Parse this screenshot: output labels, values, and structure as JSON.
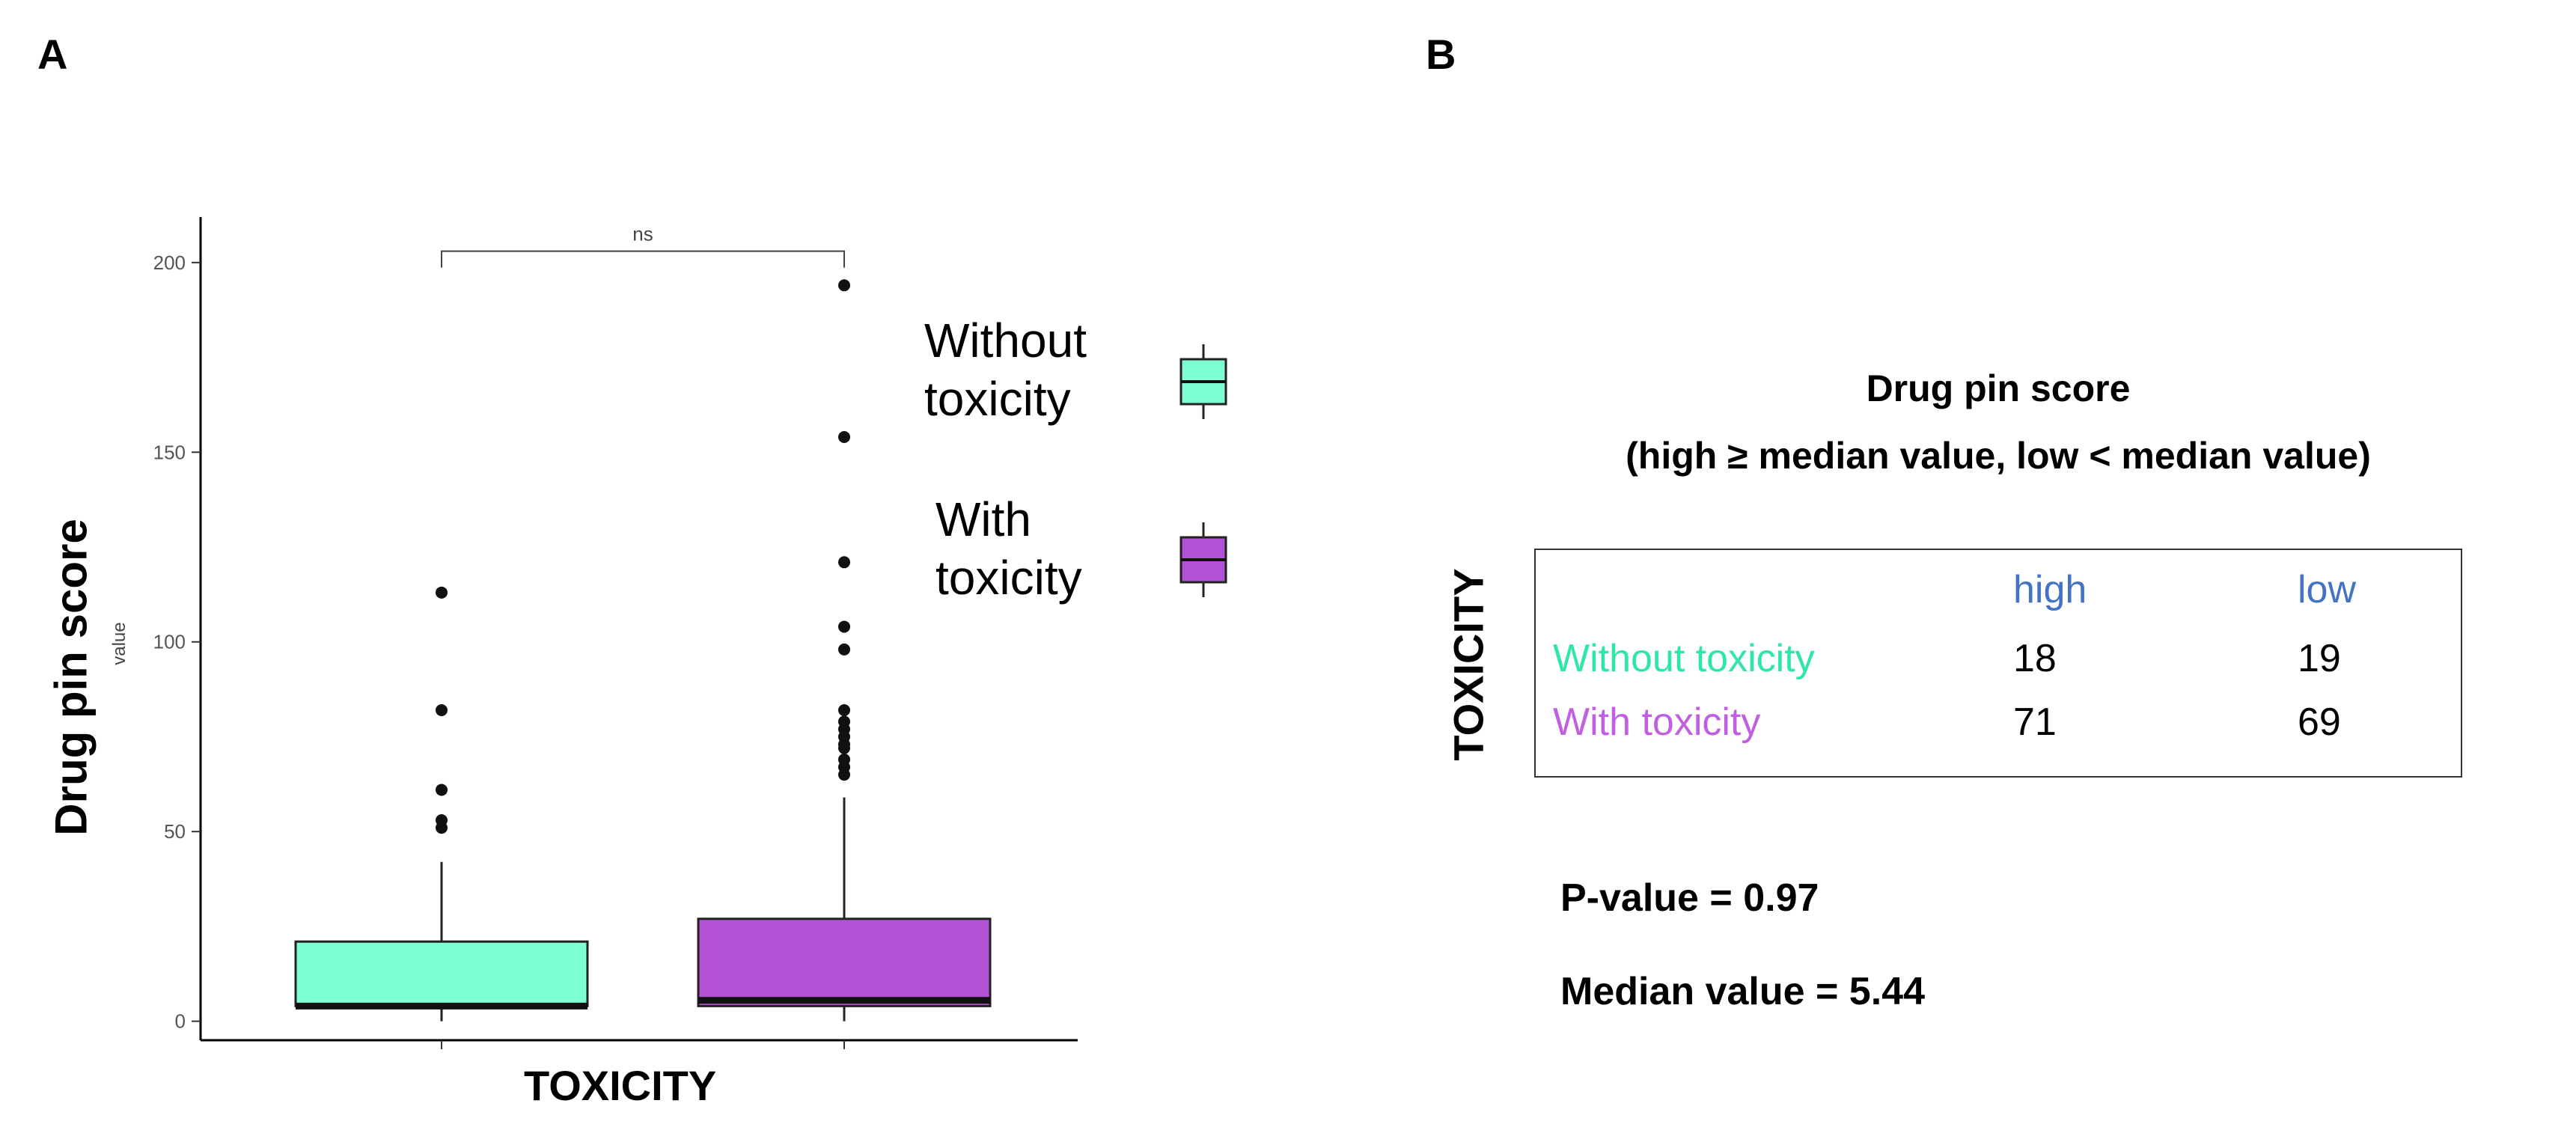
{
  "panels": {
    "a": "A",
    "b": "B"
  },
  "chart_data": {
    "type": "box",
    "ylabel": "Drug pin score",
    "ylabel_sub": "value",
    "xlabel": "TOXICITY",
    "ylim": [
      -5,
      212
    ],
    "yticks": [
      0,
      50,
      100,
      150,
      200
    ],
    "grid": false,
    "significance": {
      "label": "ns",
      "from": 0,
      "to": 1,
      "y": 203
    },
    "legend": {
      "placement": "right",
      "entries": [
        "Without\ntoxicity",
        "With\ntoxicity"
      ]
    },
    "series": [
      {
        "name": "Without toxicity",
        "color": "#7fffd4",
        "q1": 4,
        "median": 4,
        "q3": 21,
        "whisker_low": 0,
        "whisker_high": 42,
        "outliers": [
          113,
          82,
          61,
          53,
          51
        ]
      },
      {
        "name": "With toxicity",
        "color": "#b452d6",
        "q1": 4,
        "median": 5.5,
        "q3": 27,
        "whisker_low": 0,
        "whisker_high": 59,
        "outliers": [
          194,
          154,
          121,
          104,
          98,
          82,
          79,
          77,
          75,
          73,
          72,
          69,
          67,
          65
        ]
      }
    ]
  },
  "table": {
    "title_line1": "Drug pin score",
    "title_line2": "(high ≥ median value, low < median value)",
    "row_axis_title": "TOXICITY",
    "col_headers": [
      "high",
      "low"
    ],
    "header_color": "#4472c4",
    "rows": [
      {
        "label": "Without toxicity",
        "color": "#2ee6a8",
        "values": [
          "18",
          "19"
        ]
      },
      {
        "label": "With toxicity",
        "color": "#c05fe0",
        "values": [
          "71",
          "69"
        ]
      }
    ],
    "p_value": "P-value = 0.97",
    "median_value": "Median value = 5.44"
  }
}
